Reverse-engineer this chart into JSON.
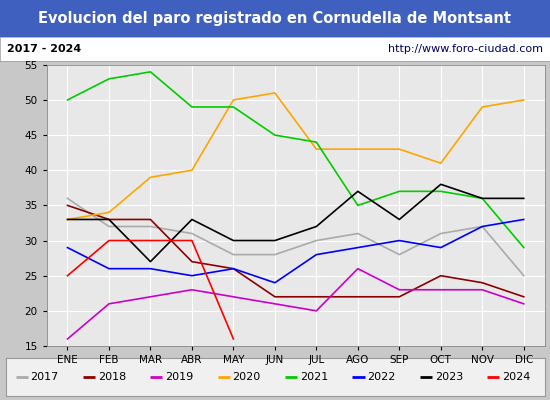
{
  "title": "Evolucion del paro registrado en Cornudella de Montsant",
  "subtitle_left": "2017 - 2024",
  "subtitle_right": "http://www.foro-ciudad.com",
  "months": [
    "ENE",
    "FEB",
    "MAR",
    "ABR",
    "MAY",
    "JUN",
    "JUL",
    "AGO",
    "SEP",
    "OCT",
    "NOV",
    "DIC"
  ],
  "ylim": [
    15,
    55
  ],
  "yticks": [
    15,
    20,
    25,
    30,
    35,
    40,
    45,
    50,
    55
  ],
  "series": {
    "2017": {
      "values": [
        36,
        32,
        32,
        31,
        28,
        28,
        30,
        31,
        28,
        31,
        32,
        25
      ],
      "color": "#aaaaaa",
      "linewidth": 1.2
    },
    "2018": {
      "values": [
        35,
        33,
        33,
        27,
        26,
        22,
        22,
        22,
        22,
        25,
        24,
        22
      ],
      "color": "#8b0000",
      "linewidth": 1.2
    },
    "2019": {
      "values": [
        16,
        21,
        22,
        23,
        22,
        21,
        20,
        26,
        23,
        23,
        23,
        21
      ],
      "color": "#cc00cc",
      "linewidth": 1.2
    },
    "2020": {
      "values": [
        33,
        34,
        39,
        40,
        50,
        51,
        43,
        43,
        43,
        41,
        49,
        50
      ],
      "color": "#ffa500",
      "linewidth": 1.2
    },
    "2021": {
      "values": [
        50,
        53,
        54,
        49,
        49,
        45,
        44,
        35,
        37,
        37,
        36,
        29
      ],
      "color": "#00cc00",
      "linewidth": 1.2
    },
    "2022": {
      "values": [
        29,
        26,
        26,
        25,
        26,
        24,
        28,
        29,
        30,
        29,
        32,
        33
      ],
      "color": "#0000ff",
      "linewidth": 1.2
    },
    "2023": {
      "values": [
        33,
        33,
        27,
        33,
        30,
        30,
        32,
        37,
        33,
        38,
        36,
        36
      ],
      "color": "#000000",
      "linewidth": 1.2
    },
    "2024": {
      "values": [
        25,
        30,
        30,
        30,
        16,
        null,
        null,
        null,
        null,
        null,
        null,
        null
      ],
      "color": "#ff0000",
      "linewidth": 1.2
    }
  },
  "title_bg_color": "#4060c0",
  "title_text_color": "#ffffff",
  "subtitle_bg_color": "#ffffff",
  "plot_bg_color": "#e8e8e8",
  "grid_color": "#ffffff",
  "legend_bg_color": "#f0f0f0",
  "title_fontsize": 10.5,
  "subtitle_fontsize": 8,
  "tick_fontsize": 7.5,
  "legend_fontsize": 8,
  "outer_bg": "#c8c8c8"
}
